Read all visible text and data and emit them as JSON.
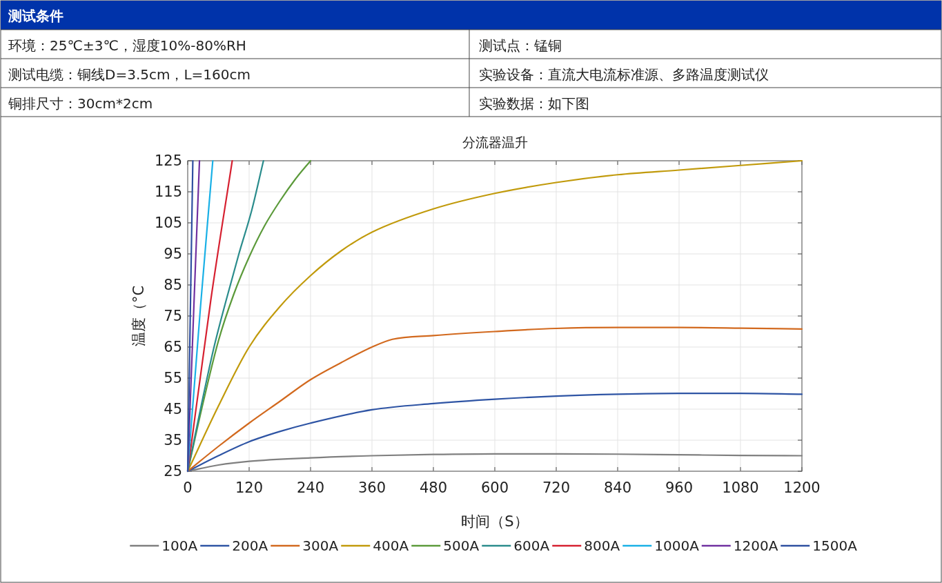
{
  "chart_data": {
    "type": "line",
    "title": "分流器温升",
    "xlabel": "时间（S）",
    "ylabel": "温度（°C",
    "annotations": [
      "测试条件",
      "环境：25℃±3℃，湿度10%-80%RH",
      "测试点：锰铜",
      "测试电缆：铜线D=3.5cm，L=160cm",
      "实验设备：直流大电流标准源、多路温度测试仪",
      "铜排尺寸：30cm*2cm",
      "实验数据：如下图"
    ],
    "xlim": [
      0,
      1200
    ],
    "xticks": [
      0,
      120,
      240,
      360,
      480,
      600,
      720,
      840,
      960,
      1080,
      1200
    ],
    "ylim": [
      25,
      125
    ],
    "yticks": [
      25,
      35,
      45,
      55,
      65,
      75,
      85,
      95,
      105,
      115,
      125
    ],
    "grid": true,
    "legend": "bottom",
    "marker": "none",
    "line_style": "solid",
    "series": [
      {
        "name": "100A",
        "color": "#7f7f7f",
        "x": [
          0,
          60,
          120,
          240,
          360,
          480,
          600,
          720,
          840,
          960,
          1080,
          1200
        ],
        "values": [
          25,
          27,
          28.2,
          29.3,
          30,
          30.4,
          30.6,
          30.6,
          30.5,
          30.3,
          30.1,
          30
        ]
      },
      {
        "name": "200A",
        "color": "#2e54a4",
        "x": [
          0,
          60,
          120,
          180,
          240,
          360,
          480,
          600,
          720,
          840,
          960,
          1080,
          1200
        ],
        "values": [
          25,
          30,
          34.5,
          37.8,
          40.5,
          44.8,
          46.8,
          48.2,
          49.2,
          49.8,
          50.1,
          50.1,
          49.8
        ]
      },
      {
        "name": "300A",
        "color": "#d2691e",
        "x": [
          0,
          60,
          120,
          180,
          240,
          300,
          360,
          400,
          480,
          600,
          720,
          840,
          960,
          1080,
          1200
        ],
        "values": [
          25,
          33,
          40.5,
          47.5,
          54.5,
          60,
          65,
          67.5,
          68.7,
          70,
          71,
          71.3,
          71.3,
          71.1,
          70.8
        ]
      },
      {
        "name": "400A",
        "color": "#c19a0b",
        "x": [
          0,
          60,
          120,
          180,
          240,
          300,
          360,
          480,
          600,
          720,
          840,
          960,
          1080,
          1200
        ],
        "values": [
          25,
          46,
          65,
          78,
          88,
          96,
          102,
          109.5,
          114.5,
          118,
          120.5,
          122,
          123.5,
          125
        ]
      },
      {
        "name": "500A",
        "color": "#5b9a3a",
        "x": [
          0,
          30,
          60,
          90,
          120,
          150,
          180,
          210,
          240
        ],
        "values": [
          25,
          47,
          67,
          82,
          94,
          104,
          112,
          119,
          125
        ]
      },
      {
        "name": "600A",
        "color": "#2a8c8c",
        "x": [
          0,
          25,
          50,
          75,
          100,
          125,
          148
        ],
        "values": [
          25,
          45,
          64,
          80,
          95,
          109,
          125
        ]
      },
      {
        "name": "800A",
        "color": "#d62030",
        "x": [
          0,
          45,
          87
        ],
        "values": [
          25,
          80,
          125
        ]
      },
      {
        "name": "1000A",
        "color": "#19b0e6",
        "x": [
          0,
          25,
          49
        ],
        "values": [
          25,
          78,
          125
        ]
      },
      {
        "name": "1200A",
        "color": "#7030a0",
        "x": [
          0,
          12,
          23
        ],
        "values": [
          25,
          78,
          125
        ]
      },
      {
        "name": "1500A",
        "color": "#2e4fa0",
        "x": [
          0,
          10
        ],
        "values": [
          25,
          125
        ]
      }
    ]
  }
}
